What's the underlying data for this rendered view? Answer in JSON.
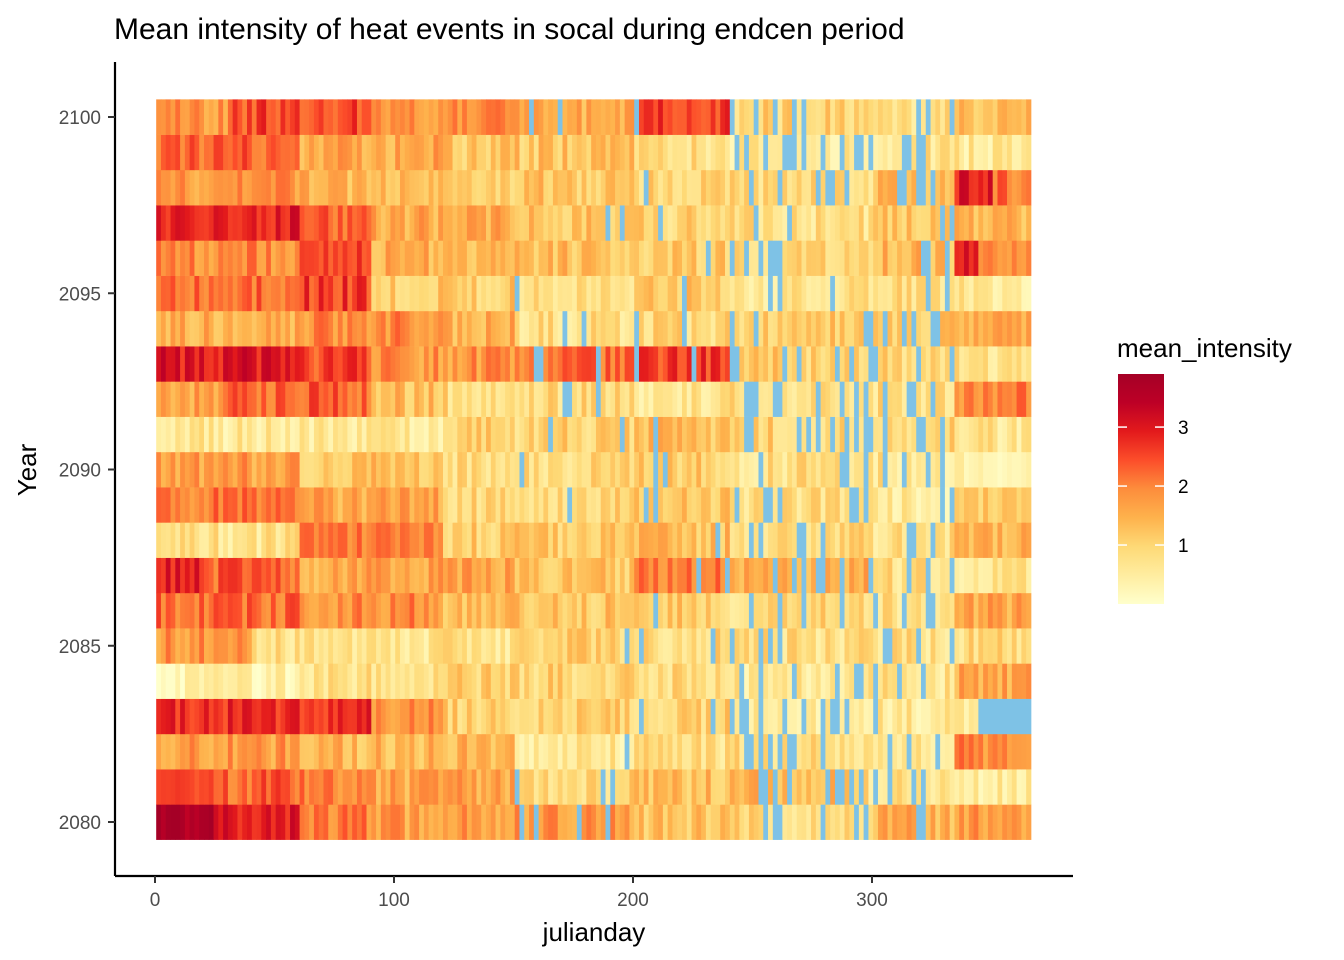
{
  "chart_data": {
    "type": "heatmap",
    "title": "Mean intensity of heat events in socal during endcen period",
    "xlabel": "julianday",
    "ylabel": "Year",
    "xlim": [
      -16,
      384
    ],
    "ylim": [
      2079,
      2101
    ],
    "x_ticks": [
      0,
      100,
      200,
      300
    ],
    "y_ticks": [
      2080,
      2085,
      2090,
      2095,
      2100
    ],
    "years": [
      2080,
      2081,
      2082,
      2083,
      2084,
      2085,
      2086,
      2087,
      2088,
      2089,
      2090,
      2091,
      2092,
      2093,
      2094,
      2095,
      2096,
      2097,
      2098,
      2099,
      2100
    ],
    "x_range": [
      1,
      366
    ],
    "missing_color": "#7ec2e6",
    "value_range": [
      0,
      3.9
    ],
    "colors": [
      "#ffffcc",
      "#ffeda0",
      "#fed976",
      "#feb24c",
      "#fd8d3c",
      "#fc4e2a",
      "#e31a1c",
      "#bd0026",
      "#a50026"
    ],
    "legend": {
      "title": "mean_intensity",
      "ticks": [
        1,
        2,
        3
      ],
      "position": "right"
    },
    "grid": false,
    "note_values": "Cell values estimated by reading colors; base intensity per year/segment listed as [start_day, end_day, mean_intensity] (null = no event/missing).",
    "segments": {
      "2080": [
        [
          1,
          25,
          3.8
        ],
        [
          25,
          60,
          2.9
        ],
        [
          60,
          90,
          2.0
        ],
        [
          90,
          200,
          1.7
        ],
        [
          200,
          240,
          1.2
        ],
        [
          240,
          300,
          0.9
        ],
        [
          300,
          334,
          1.5
        ],
        [
          334,
          366,
          1.7
        ]
      ],
      "2081": [
        [
          1,
          60,
          2.3
        ],
        [
          60,
          90,
          2.0
        ],
        [
          90,
          150,
          1.6
        ],
        [
          150,
          200,
          1.0
        ],
        [
          200,
          240,
          1.3
        ],
        [
          240,
          290,
          1.4
        ],
        [
          290,
          334,
          0.8
        ],
        [
          334,
          366,
          0.5
        ]
      ],
      "2082": [
        [
          1,
          60,
          1.7
        ],
        [
          60,
          150,
          1.4
        ],
        [
          150,
          200,
          0.6
        ],
        [
          200,
          240,
          0.8
        ],
        [
          240,
          300,
          0.9
        ],
        [
          300,
          334,
          0.7
        ],
        [
          334,
          366,
          1.9
        ]
      ],
      "2083": [
        [
          1,
          90,
          2.8
        ],
        [
          90,
          120,
          1.8
        ],
        [
          120,
          200,
          1.1
        ],
        [
          200,
          240,
          1.0
        ],
        [
          240,
          300,
          0.6
        ],
        [
          300,
          334,
          0.6
        ],
        [
          334,
          345,
          0.4
        ],
        [
          345,
          366,
          null
        ]
      ],
      "2084": [
        [
          1,
          60,
          0.4
        ],
        [
          60,
          120,
          0.8
        ],
        [
          120,
          200,
          1.0
        ],
        [
          200,
          240,
          0.9
        ],
        [
          240,
          300,
          0.6
        ],
        [
          300,
          334,
          0.7
        ],
        [
          334,
          366,
          1.6
        ]
      ],
      "2085": [
        [
          1,
          40,
          1.8
        ],
        [
          40,
          100,
          0.8
        ],
        [
          100,
          150,
          0.7
        ],
        [
          150,
          200,
          1.0
        ],
        [
          200,
          240,
          0.9
        ],
        [
          240,
          300,
          0.8
        ],
        [
          300,
          334,
          0.8
        ],
        [
          334,
          366,
          0.9
        ]
      ],
      "2086": [
        [
          1,
          60,
          2.2
        ],
        [
          60,
          120,
          1.9
        ],
        [
          120,
          200,
          1.2
        ],
        [
          200,
          240,
          1.1
        ],
        [
          240,
          300,
          0.9
        ],
        [
          300,
          334,
          0.8
        ],
        [
          334,
          366,
          1.6
        ]
      ],
      "2087": [
        [
          1,
          20,
          2.9
        ],
        [
          20,
          60,
          2.3
        ],
        [
          60,
          150,
          1.6
        ],
        [
          150,
          200,
          1.2
        ],
        [
          200,
          240,
          2.0
        ],
        [
          240,
          300,
          1.5
        ],
        [
          300,
          334,
          0.8
        ],
        [
          334,
          366,
          0.6
        ]
      ],
      "2088": [
        [
          1,
          60,
          0.7
        ],
        [
          60,
          120,
          2.0
        ],
        [
          120,
          200,
          1.1
        ],
        [
          200,
          240,
          1.3
        ],
        [
          240,
          300,
          0.9
        ],
        [
          300,
          334,
          0.8
        ],
        [
          334,
          366,
          1.4
        ]
      ],
      "2089": [
        [
          1,
          60,
          2.1
        ],
        [
          60,
          120,
          1.6
        ],
        [
          120,
          200,
          1.0
        ],
        [
          200,
          240,
          1.2
        ],
        [
          240,
          300,
          0.8
        ],
        [
          300,
          334,
          0.6
        ],
        [
          334,
          366,
          1.0
        ]
      ],
      "2090": [
        [
          1,
          60,
          1.7
        ],
        [
          60,
          120,
          1.2
        ],
        [
          120,
          200,
          0.9
        ],
        [
          200,
          240,
          1.1
        ],
        [
          240,
          300,
          0.8
        ],
        [
          300,
          334,
          0.7
        ],
        [
          334,
          366,
          0.5
        ]
      ],
      "2091": [
        [
          1,
          60,
          0.6
        ],
        [
          60,
          120,
          0.6
        ],
        [
          120,
          200,
          1.0
        ],
        [
          200,
          240,
          1.3
        ],
        [
          240,
          300,
          1.0
        ],
        [
          300,
          334,
          0.9
        ],
        [
          334,
          366,
          0.7
        ]
      ],
      "2092": [
        [
          1,
          30,
          1.7
        ],
        [
          30,
          90,
          2.3
        ],
        [
          90,
          120,
          1.3
        ],
        [
          120,
          200,
          0.9
        ],
        [
          200,
          240,
          0.7
        ],
        [
          240,
          300,
          0.8
        ],
        [
          300,
          334,
          0.8
        ],
        [
          334,
          366,
          2.0
        ]
      ],
      "2093": [
        [
          1,
          60,
          3.0
        ],
        [
          60,
          90,
          2.5
        ],
        [
          90,
          150,
          1.8
        ],
        [
          150,
          200,
          2.2
        ],
        [
          200,
          240,
          2.6
        ],
        [
          240,
          300,
          1.1
        ],
        [
          300,
          334,
          1.0
        ],
        [
          334,
          366,
          0.8
        ]
      ],
      "2094": [
        [
          1,
          60,
          1.5
        ],
        [
          60,
          120,
          1.9
        ],
        [
          120,
          150,
          1.5
        ],
        [
          150,
          200,
          0.8
        ],
        [
          200,
          240,
          0.9
        ],
        [
          240,
          300,
          1.1
        ],
        [
          300,
          334,
          1.2
        ],
        [
          334,
          366,
          1.6
        ]
      ],
      "2095": [
        [
          1,
          60,
          2.2
        ],
        [
          60,
          90,
          2.6
        ],
        [
          90,
          150,
          1.1
        ],
        [
          150,
          200,
          0.9
        ],
        [
          200,
          240,
          1.2
        ],
        [
          240,
          300,
          0.7
        ],
        [
          300,
          334,
          0.8
        ],
        [
          334,
          366,
          0.6
        ]
      ],
      "2096": [
        [
          1,
          60,
          1.9
        ],
        [
          60,
          90,
          2.5
        ],
        [
          90,
          150,
          1.5
        ],
        [
          150,
          200,
          1.3
        ],
        [
          200,
          240,
          1.1
        ],
        [
          240,
          300,
          0.9
        ],
        [
          300,
          334,
          1.4
        ],
        [
          334,
          345,
          2.9
        ],
        [
          345,
          366,
          1.8
        ]
      ],
      "2097": [
        [
          1,
          60,
          2.9
        ],
        [
          60,
          90,
          2.3
        ],
        [
          90,
          150,
          1.6
        ],
        [
          150,
          200,
          1.2
        ],
        [
          200,
          240,
          1.0
        ],
        [
          240,
          300,
          0.8
        ],
        [
          300,
          334,
          1.2
        ],
        [
          334,
          366,
          1.5
        ]
      ],
      "2098": [
        [
          1,
          60,
          1.8
        ],
        [
          60,
          120,
          1.4
        ],
        [
          120,
          200,
          1.2
        ],
        [
          200,
          240,
          1.0
        ],
        [
          240,
          300,
          0.9
        ],
        [
          300,
          334,
          1.3
        ],
        [
          334,
          350,
          3.0
        ],
        [
          350,
          366,
          2.1
        ]
      ],
      "2099": [
        [
          1,
          60,
          2.3
        ],
        [
          60,
          120,
          1.6
        ],
        [
          120,
          200,
          1.2
        ],
        [
          200,
          240,
          0.8
        ],
        [
          240,
          300,
          0.6
        ],
        [
          300,
          334,
          0.7
        ],
        [
          334,
          366,
          0.6
        ]
      ],
      "2100": [
        [
          1,
          30,
          1.8
        ],
        [
          30,
          90,
          2.5
        ],
        [
          90,
          150,
          1.9
        ],
        [
          150,
          200,
          1.5
        ],
        [
          200,
          240,
          2.6
        ],
        [
          240,
          300,
          1.0
        ],
        [
          300,
          334,
          0.8
        ],
        [
          334,
          366,
          1.3
        ]
      ]
    }
  }
}
